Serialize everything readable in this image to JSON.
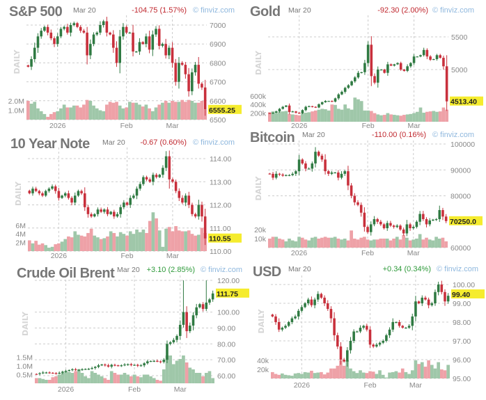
{
  "brand": "© finviz.com",
  "period_label": "DAILY",
  "colors": {
    "up": "#2f7a42",
    "down": "#c8303c",
    "vol_up": "#9fc7a9",
    "vol_down": "#eea1a7",
    "last_tag": "#f5ec2e",
    "change_down": "#c0282f",
    "change_up": "#2e9a3a"
  },
  "chart_data": [
    {
      "type": "candlestick",
      "title": "S&P 500",
      "date": "Mar 20",
      "change": "-104.75 (1.57%)",
      "direction": "down",
      "last": "6555.25",
      "ylim": [
        6500,
        7000
      ],
      "yticks": [
        "7000",
        "6900",
        "6800",
        "6700",
        "6600",
        "6500"
      ],
      "vol_ticks": [
        "2.0M",
        "1.0M"
      ],
      "xticks": [
        "2026",
        "Feb",
        "Mar"
      ],
      "closes": [
        6780,
        6820,
        6880,
        6940,
        6970,
        6990,
        6960,
        6930,
        6900,
        6940,
        6980,
        6990,
        6960,
        7000,
        7010,
        6990,
        6970,
        6960,
        6840,
        6900,
        6950,
        6960,
        7000,
        7020,
        6960,
        6950,
        6880,
        6800,
        6940,
        6990,
        6960,
        6960,
        6860,
        6860,
        6910,
        6900,
        6940,
        6870,
        6950,
        6980,
        6890,
        6900,
        6840,
        6880,
        6800,
        6700,
        6800,
        6790,
        6740,
        6650,
        6750,
        6790,
        6690,
        6670,
        6555.25
      ],
      "volumes": [
        2.0,
        1.7,
        1.9,
        1.2,
        0.9,
        0.6,
        0.3,
        0.6,
        0.8,
        0.9,
        1.2,
        1.6,
        1.3,
        1.3,
        1.5,
        1.5,
        1.3,
        1.6,
        2.1,
        2.0,
        1.5,
        1.2,
        1.0,
        0.9,
        1.6,
        1.9,
        1.8,
        1.9,
        1.5,
        1.2,
        1.3,
        1.9,
        1.8,
        1.8,
        1.6,
        1.4,
        1.6,
        1.2,
        0.9,
        1.3,
        1.6,
        1.8,
        2.0,
        1.8,
        2.0,
        1.9,
        1.9,
        2.1,
        1.9,
        2.1,
        2.0,
        1.8,
        1.8,
        2.0,
        1.1
      ]
    },
    {
      "type": "candlestick",
      "title": "Gold",
      "date": "Mar 20",
      "change": "-92.30 (2.00%)",
      "direction": "down",
      "last": "4513.40",
      "ylim": [
        4200,
        5700
      ],
      "yticks": [
        "5500",
        "5000"
      ],
      "vol_ticks": [
        "600k",
        "400k",
        "200k"
      ],
      "xticks": [
        "2026",
        "Feb",
        "Mar"
      ],
      "closes": [
        4330,
        4340,
        4360,
        4400,
        4430,
        4450,
        4350,
        4360,
        4340,
        4330,
        4380,
        4430,
        4440,
        4430,
        4420,
        4470,
        4500,
        4520,
        4520,
        4510,
        4560,
        4620,
        4660,
        4720,
        4760,
        4820,
        4880,
        4950,
        4960,
        5100,
        5380,
        4900,
        4800,
        5000,
        5000,
        4950,
        5080,
        5060,
        5080,
        5100,
        5000,
        4980,
        5050,
        5100,
        5200,
        5200,
        5220,
        5300,
        5200,
        5150,
        5160,
        5220,
        5180,
        5050,
        4513.4
      ],
      "volumes": [
        220,
        240,
        200,
        230,
        240,
        250,
        180,
        170,
        160,
        150,
        190,
        210,
        220,
        240,
        260,
        280,
        300,
        290,
        260,
        400,
        390,
        300,
        280,
        400,
        310,
        280,
        560,
        520,
        480,
        260,
        260,
        250,
        200,
        170,
        150,
        160,
        200,
        170,
        160,
        150,
        140,
        160,
        170,
        180,
        200,
        230,
        330,
        210,
        230,
        240,
        250,
        230,
        240,
        330,
        280
      ]
    },
    {
      "type": "candlestick",
      "title": "10 Year Note",
      "date": "Mar 20",
      "change": "-0.67 (0.60%)",
      "direction": "down",
      "last": "110.55",
      "ylim": [
        110,
        114.5
      ],
      "yticks": [
        "114.00",
        "113.00",
        "112.00",
        "111.00",
        "110.00"
      ],
      "vol_ticks": [
        "6M",
        "4M",
        "2M"
      ],
      "xticks": [
        "2026",
        "Feb",
        "Mar"
      ],
      "closes": [
        112.5,
        112.7,
        112.6,
        112.5,
        112.4,
        112.6,
        112.7,
        112.8,
        112.6,
        112.3,
        112.4,
        112.5,
        112.3,
        112.1,
        112.4,
        112.6,
        112.5,
        111.9,
        111.6,
        111.5,
        111.6,
        111.8,
        111.7,
        111.8,
        111.6,
        111.7,
        111.5,
        111.6,
        111.9,
        112.1,
        112.0,
        112.3,
        112.4,
        112.7,
        112.9,
        113.2,
        113.1,
        113.0,
        113.3,
        113.2,
        113.3,
        113.6,
        114.1,
        113.1,
        113.0,
        112.6,
        112.3,
        112.1,
        112.4,
        112.0,
        111.6,
        111.5,
        112.0,
        111.5,
        110.55
      ],
      "volumes": [
        2.5,
        1.8,
        2.4,
        1.5,
        1.8,
        1.4,
        0.8,
        1.0,
        1.6,
        1.8,
        2.2,
        2.8,
        3.4,
        3.2,
        4.6,
        3.8,
        3.6,
        3.4,
        4.2,
        5.2,
        3.6,
        3.2,
        2.8,
        3.0,
        3.4,
        4.6,
        4.2,
        3.4,
        4.4,
        4.0,
        3.6,
        4.6,
        4.0,
        5.0,
        4.4,
        5.0,
        4.2,
        7.0,
        9.0,
        7.6,
        4.8,
        1.0,
        5.2,
        5.6,
        4.6,
        5.8,
        4.8,
        4.6,
        4.6,
        4.8,
        4.0,
        3.6,
        3.8,
        5.4,
        4.2
      ]
    },
    {
      "type": "candlestick",
      "title": "Bitcoin",
      "date": "Mar 20",
      "change": "-110.00 (0.16%)",
      "direction": "down",
      "last": "70250.0",
      "ylim": [
        60000,
        100000
      ],
      "yticks": [
        "100000",
        "90000",
        "80000",
        "60000"
      ],
      "vol_ticks": [
        "20k",
        "10k"
      ],
      "xticks": [
        "2026",
        "Feb",
        "Mar"
      ],
      "closes": [
        88500,
        87000,
        88500,
        88200,
        87800,
        88000,
        88000,
        88500,
        89500,
        94000,
        92500,
        90500,
        90500,
        92500,
        97000,
        95500,
        94000,
        89500,
        88500,
        89000,
        89000,
        87000,
        88500,
        89500,
        84000,
        80000,
        77500,
        76500,
        73500,
        68000,
        66000,
        69000,
        71000,
        70000,
        69000,
        67500,
        69500,
        68500,
        68000,
        68500,
        67000,
        65500,
        69000,
        67500,
        68000,
        70000,
        73000,
        71000,
        69000,
        70500,
        70800,
        71000,
        74500,
        72000,
        70250
      ],
      "volumes": [
        10,
        12,
        12,
        10,
        9,
        7,
        10,
        8,
        7,
        12,
        11,
        9,
        8,
        11,
        12,
        10,
        11,
        12,
        11,
        11,
        12,
        10,
        9,
        10,
        8,
        19,
        10,
        9,
        11,
        12,
        9,
        8,
        9,
        9,
        10,
        10,
        10,
        8,
        10,
        12,
        9,
        14,
        11,
        8,
        9,
        10,
        15,
        9,
        11,
        9,
        8,
        12,
        10,
        11,
        7
      ]
    },
    {
      "type": "candlestick",
      "title": "Crude Oil Brent",
      "date": "Mar 20",
      "change": "+3.10 (2.85%)",
      "direction": "up",
      "last": "111.75",
      "ylim": [
        55,
        120
      ],
      "yticks": [
        "120.00",
        "100.00",
        "90.00",
        "80.00",
        "70.00",
        "60.00"
      ],
      "vol_ticks": [
        "1.5M",
        "1.0M",
        "0.5M"
      ],
      "xticks": [
        "2026",
        "Feb",
        "Mar"
      ],
      "closes": [
        61,
        61.5,
        62,
        62,
        61.8,
        61.6,
        61.4,
        61.8,
        62.5,
        63,
        63.5,
        64,
        63.5,
        63.7,
        64,
        64.2,
        64.3,
        64.8,
        65.5,
        66.5,
        67,
        66.5,
        65.7,
        66.8,
        66.5,
        66.2,
        66.5,
        67,
        67.2,
        66.6,
        66.8,
        66.2,
        66.5,
        67.8,
        69,
        69.2,
        69.3,
        69,
        68.6,
        70,
        80,
        81,
        82.5,
        85,
        92,
        100,
        88,
        91.5,
        98,
        103,
        105,
        102,
        106,
        108,
        111.75
      ],
      "spikes": [
        {
          "index": 45,
          "high": 120
        },
        {
          "index": 52,
          "high": 120
        }
      ],
      "volumes": [
        0.3,
        0.3,
        0.25,
        0.2,
        0.2,
        0.35,
        0.4,
        0.5,
        0.6,
        0.7,
        0.65,
        0.6,
        0.7,
        0.8,
        0.6,
        0.4,
        0.3,
        0.7,
        0.6,
        0.5,
        0.4,
        0.3,
        0.2,
        0.7,
        0.6,
        0.5,
        0.5,
        0.6,
        0.5,
        0.4,
        0.5,
        0.4,
        0.35,
        0.5,
        0.5,
        0.4,
        0.3,
        0.2,
        0.15,
        0.8,
        1.6,
        1.6,
        1.1,
        1.3,
        1.4,
        1.6,
        1.2,
        0.9,
        0.8,
        0.6,
        0.6,
        0.4,
        0.6,
        0.7,
        0.3
      ]
    },
    {
      "type": "candlestick",
      "title": "USD",
      "date": "Mar 20",
      "change": "+0.34 (0.34%)",
      "direction": "up",
      "last": "99.40",
      "ylim": [
        95,
        100.5
      ],
      "yticks": [
        "100.00",
        "99.00",
        "98.00",
        "97.00",
        "96.00",
        "95.00"
      ],
      "vol_ticks": [
        "40k",
        "20k"
      ],
      "xticks": [
        "2026",
        "Feb",
        "Mar"
      ],
      "closes": [
        98.3,
        98.0,
        97.6,
        97.7,
        97.8,
        98.0,
        98.2,
        98.3,
        98.6,
        98.8,
        99.0,
        99.2,
        98.9,
        99.2,
        99.5,
        99.3,
        99.0,
        98.7,
        98.2,
        97.3,
        96.7,
        96.0,
        95.9,
        96.5,
        97.0,
        97.5,
        97.5,
        97.7,
        97.8,
        97.6,
        96.8,
        96.7,
        96.8,
        96.9,
        97.0,
        97.3,
        97.6,
        98.0,
        98.0,
        97.8,
        97.7,
        97.7,
        97.8,
        98.3,
        99.1,
        99.0,
        99.3,
        99.2,
        98.9,
        99.0,
        99.6,
        100.0,
        99.6,
        99.1,
        99.4
      ],
      "volumes": [
        14,
        10,
        8,
        11,
        8,
        7,
        6,
        11,
        12,
        10,
        14,
        13,
        17,
        12,
        13,
        14,
        9,
        13,
        22,
        22,
        28,
        40,
        28,
        40,
        22,
        16,
        12,
        18,
        13,
        12,
        16,
        15,
        10,
        18,
        8,
        2,
        13,
        14,
        16,
        13,
        22,
        14,
        10,
        18,
        40,
        32,
        36,
        26,
        40,
        30,
        22,
        36,
        20,
        18,
        30
      ]
    }
  ]
}
